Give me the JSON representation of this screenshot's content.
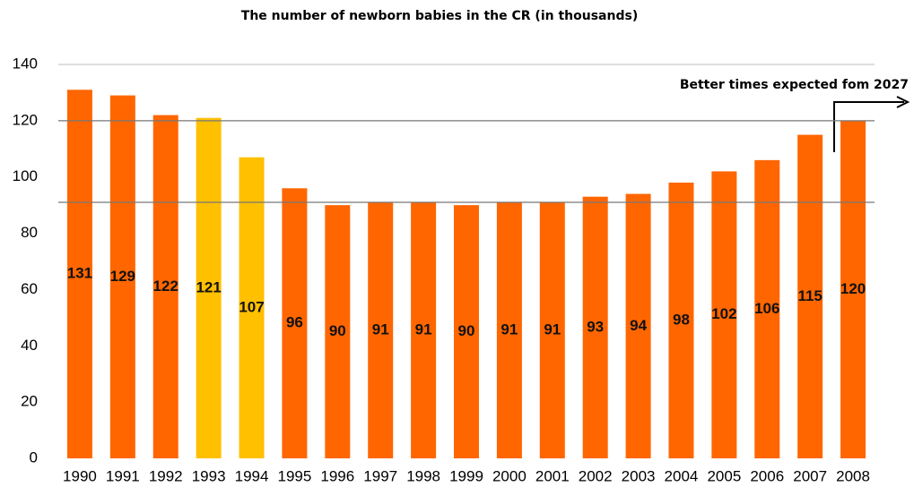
{
  "chart_data": {
    "type": "bar",
    "title": "The number of newborn babies in the CR (in thousands)",
    "annotation": "Better times expected fom 2027",
    "categories": [
      "1990",
      "1991",
      "1992",
      "1993",
      "1994",
      "1995",
      "1996",
      "1997",
      "1998",
      "1999",
      "2000",
      "2001",
      "2002",
      "2003",
      "2004",
      "2005",
      "2006",
      "2007",
      "2008"
    ],
    "values": [
      131,
      129,
      122,
      121,
      107,
      96,
      90,
      91,
      91,
      90,
      91,
      91,
      93,
      94,
      98,
      102,
      106,
      115,
      120
    ],
    "colors": [
      "#ff6600",
      "#ff6600",
      "#ff6600",
      "#ffc000",
      "#ffc000",
      "#ff6600",
      "#ff6600",
      "#ff6600",
      "#ff6600",
      "#ff6600",
      "#ff6600",
      "#ff6600",
      "#ff6600",
      "#ff6600",
      "#ff6600",
      "#ff6600",
      "#ff6600",
      "#ff6600",
      "#ff6600"
    ],
    "ylim": [
      0,
      140
    ],
    "yticks": [
      0,
      20,
      40,
      60,
      80,
      100,
      120,
      140
    ],
    "reference_lines": [
      120,
      91
    ],
    "grid": false
  }
}
